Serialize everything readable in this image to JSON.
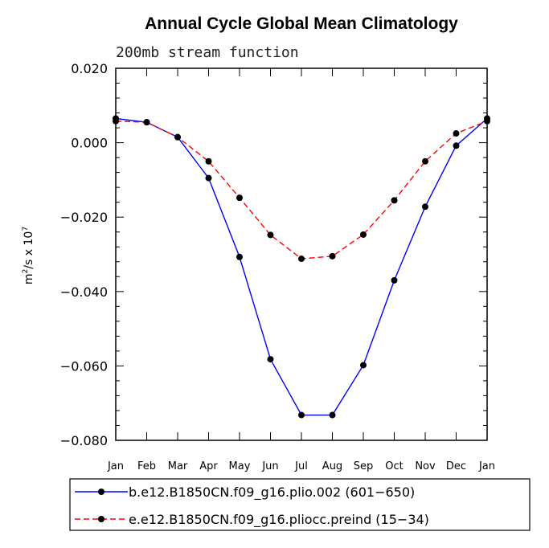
{
  "chart_data": {
    "type": "line",
    "title": "Annual Cycle Global Mean Climatology",
    "subtitle": "200mb stream function",
    "ylabel_base": "m",
    "ylabel_sup1": "2",
    "ylabel_mid": "/s x 10",
    "ylabel_sup2": "7",
    "ylim": [
      -0.08,
      0.02
    ],
    "yticks": [
      0.02,
      0.0,
      -0.02,
      -0.04,
      -0.06,
      -0.08
    ],
    "ytick_labels": [
      "0.020",
      "0.000",
      "−0.020",
      "−0.040",
      "−0.060",
      "−0.080"
    ],
    "categories": [
      "Jan",
      "Feb",
      "Mar",
      "Apr",
      "May",
      "Jun",
      "Jul",
      "Aug",
      "Sep",
      "Oct",
      "Nov",
      "Dec",
      "Jan"
    ],
    "legend_position": "bottom",
    "series": [
      {
        "name": "b.e12.B1850CN.f09_g16.plio.002 (601−650)",
        "color": "#0000ff",
        "dash": "solid",
        "values": [
          0.0065,
          0.0055,
          0.0015,
          -0.0095,
          -0.0307,
          -0.0582,
          -0.0732,
          -0.0732,
          -0.0598,
          -0.037,
          -0.0172,
          -0.0008,
          0.0065
        ]
      },
      {
        "name": "e.e12.B1850CN.f09_g16.pliocc.preind (15−34)",
        "color": "#ff0000",
        "dash": "dashed",
        "values": [
          0.0058,
          0.0055,
          0.0015,
          -0.005,
          -0.0148,
          -0.0248,
          -0.0312,
          -0.0305,
          -0.0247,
          -0.0155,
          -0.005,
          0.0025,
          0.0058
        ]
      }
    ]
  }
}
